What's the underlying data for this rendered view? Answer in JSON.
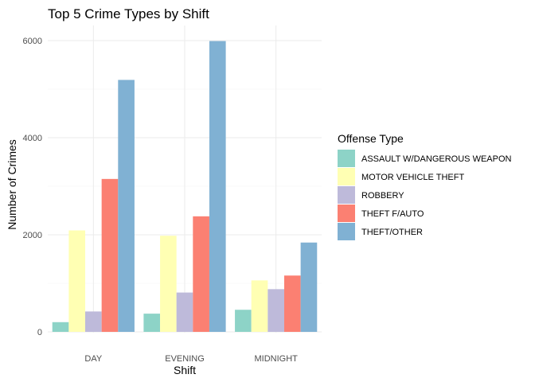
{
  "chart_data": {
    "type": "bar",
    "title": "Top 5 Crime Types by Shift",
    "xlabel": "Shift",
    "ylabel": "Number of Crimes",
    "categories": [
      "DAY",
      "EVENING",
      "MIDNIGHT"
    ],
    "yticks": [
      "0",
      "2000",
      "4000",
      "6000"
    ],
    "ylim": [
      0,
      6100
    ],
    "grid": true,
    "legend": {
      "title": "Offense Type",
      "position": "right"
    },
    "series": [
      {
        "name": "ASSAULT W/DANGEROUS WEAPON",
        "color": "#8DD3C7",
        "values": [
          200,
          375,
          455
        ]
      },
      {
        "name": "MOTOR VEHICLE THEFT",
        "color": "#FFFFB3",
        "values": [
          2090,
          1980,
          1060
        ]
      },
      {
        "name": "ROBBERY",
        "color": "#BEBADA",
        "values": [
          420,
          810,
          880
        ]
      },
      {
        "name": "THEFT F/AUTO",
        "color": "#FB8072",
        "values": [
          3150,
          2380,
          1160
        ]
      },
      {
        "name": "THEFT/OTHER",
        "color": "#80B1D3",
        "values": [
          5190,
          5990,
          1840
        ]
      }
    ]
  }
}
